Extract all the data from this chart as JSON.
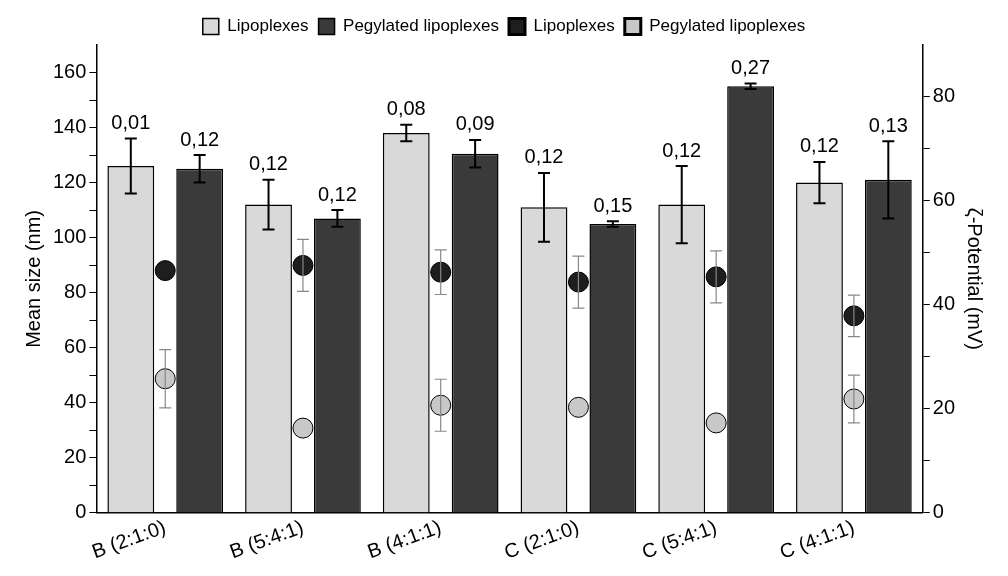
{
  "chart_data": {
    "type": "bar",
    "ylabel": "Mean size (nm)",
    "y2label": "ζ-Potential (mV)",
    "categories": [
      "B (2:1:0)",
      "B (5:4:1)",
      "B (4:1:1)",
      "C (2:1:0)",
      "C (5:4:1)",
      "C (4:1:1)"
    ],
    "series": [
      {
        "name": "Lipoplexes",
        "color": "#d9d9d9",
        "values": [
          126,
          112,
          138,
          111,
          112,
          120
        ],
        "errors": [
          10,
          9,
          3,
          12.5,
          14,
          7.5
        ]
      },
      {
        "name": "Pegylated lipoplexes",
        "color": "#3a3a3a",
        "values": [
          125,
          107,
          130.5,
          105,
          155,
          121
        ],
        "errors": [
          5,
          3,
          5,
          1,
          1,
          14
        ]
      },
      {
        "name": "Lipoplexes",
        "type": "scatter",
        "axis": "y2",
        "color": "#1e1e1e",
        "x": [
          "B (2:1:0)",
          "B (5:4:1)",
          "B (4:1:1)",
          "C (2:1:0)",
          "C (5:4:1)",
          "C (4:1:1)"
        ],
        "values": [
          46.6,
          47.6,
          46.3,
          44.4,
          45.4,
          37.9
        ],
        "errors": [
          null,
          5,
          4.3,
          5,
          5,
          4
        ]
      },
      {
        "name": "Pegylated lipoplexes",
        "type": "scatter",
        "axis": "y2",
        "color": "#c8c8c8",
        "x": [
          "B (2:1:0)",
          "B (5:4:1)",
          "B (4:1:1)",
          "C (2:1:0)",
          "C (5:4:1)",
          "C (4:1:1)"
        ],
        "values": [
          25.8,
          16.3,
          20.7,
          20.3,
          17.3,
          21.9
        ],
        "errors": [
          5.6,
          null,
          5,
          null,
          null,
          4.6
        ]
      }
    ],
    "annotations": [
      "0,01",
      "0,12",
      "0,12",
      "0,12",
      "0,08",
      "0,09",
      "0,12",
      "0,15",
      "0,12",
      "0,27",
      "0,12",
      "0,13"
    ],
    "ylim": [
      0,
      170
    ],
    "yticks": [
      0,
      {
        "value": 10,
        "label": null
      },
      20,
      {
        "value": 30,
        "label": null
      },
      40,
      {
        "value": 50,
        "label": null
      },
      60,
      {
        "value": 70,
        "label": null
      },
      80,
      {
        "value": 90,
        "label": null
      },
      100,
      {
        "value": 110,
        "label": null
      },
      120,
      {
        "value": 130,
        "label": null
      },
      140,
      {
        "value": 150,
        "label": null
      },
      160
    ],
    "y2lim": [
      0,
      90
    ],
    "y2ticks": [
      0,
      {
        "value": 10,
        "label": null
      },
      20,
      {
        "value": 30,
        "label": null
      },
      40,
      {
        "value": 50,
        "label": null
      },
      60,
      {
        "value": 70,
        "label": null
      },
      80
    ],
    "marker": "circle",
    "legend": "top",
    "grid": false
  }
}
